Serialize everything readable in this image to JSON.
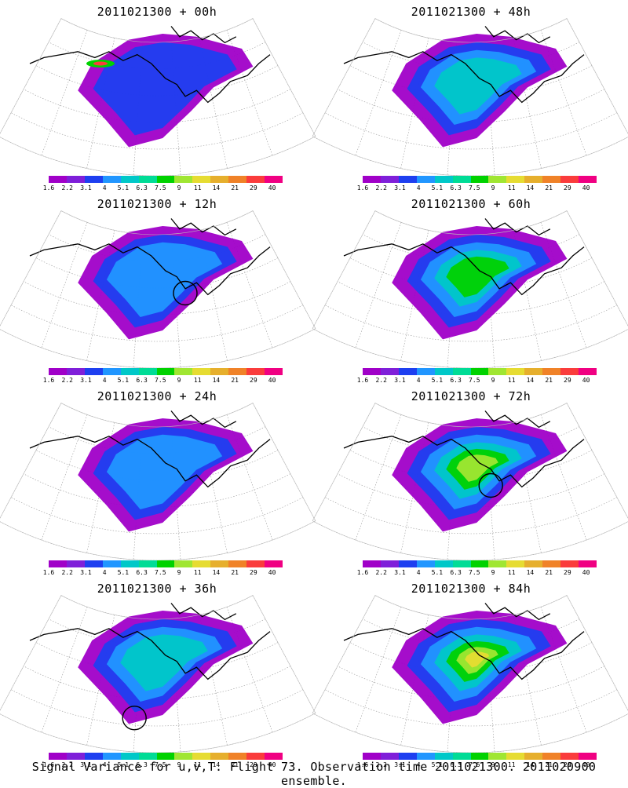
{
  "panels": [
    {
      "title": "2011021300 + 00h",
      "col": 0,
      "row": 0,
      "circle": null,
      "level": 0
    },
    {
      "title": "2011021300 + 48h",
      "col": 1,
      "row": 0,
      "circle": null,
      "level": 2
    },
    {
      "title": "2011021300 + 12h",
      "col": 0,
      "row": 1,
      "circle": [
        0.6,
        0.55
      ],
      "level": 1
    },
    {
      "title": "2011021300 + 60h",
      "col": 1,
      "row": 1,
      "circle": null,
      "level": 3
    },
    {
      "title": "2011021300 + 24h",
      "col": 0,
      "row": 2,
      "circle": null,
      "level": 1
    },
    {
      "title": "2011021300 + 72h",
      "col": 1,
      "row": 2,
      "circle": [
        0.57,
        0.55
      ],
      "level": 4
    },
    {
      "title": "2011021300 + 36h",
      "col": 0,
      "row": 3,
      "circle": [
        0.42,
        0.82
      ],
      "level": 2
    },
    {
      "title": "2011021300 + 84h",
      "col": 1,
      "row": 3,
      "circle": null,
      "level": 5
    }
  ],
  "colorbar": {
    "colors": [
      "#a000c8",
      "#7f1fd9",
      "#1e3ff0",
      "#2196ff",
      "#00c8c8",
      "#00dc96",
      "#00d200",
      "#a0e632",
      "#e6dc32",
      "#e6af2d",
      "#f08228",
      "#fa3c3c",
      "#f00082"
    ],
    "ticks": [
      "1.6",
      "2.2",
      "3.1",
      "4",
      "5.1",
      "6.3",
      "7.5",
      "9",
      "11",
      "14",
      "21",
      "29",
      "40"
    ]
  },
  "caption": "Signal Variance for u,v,T. Flight 73. Observation time 2011021300. 2011020900 ensemble."
}
